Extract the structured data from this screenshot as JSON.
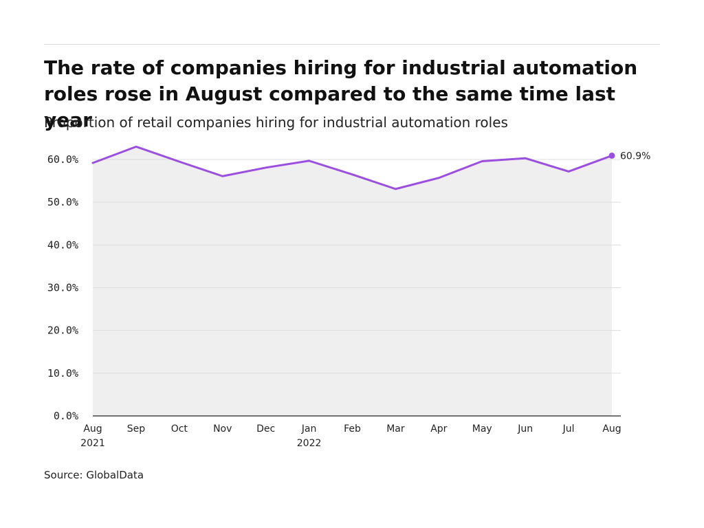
{
  "header": {
    "title": "The rate of companies hiring for industrial automation roles rose in August compared to the same time last year",
    "subtitle": "Proportion of retail companies hiring for industrial automation roles"
  },
  "footer": {
    "source": "Source: GlobalData"
  },
  "colors": {
    "line": "#9b4fe0",
    "area": "#efefef",
    "grid": "#dedede",
    "axis": "#222222"
  },
  "chart_data": {
    "type": "area",
    "categories": [
      "Aug\n2021",
      "Sep",
      "Oct",
      "Nov",
      "Dec",
      "Jan\n2022",
      "Feb",
      "Mar",
      "Apr",
      "May",
      "Jun",
      "Jul",
      "Aug"
    ],
    "series": [
      {
        "values": [
          59.2,
          63.0,
          59.5,
          56.1,
          58.1,
          59.7,
          56.5,
          53.1,
          55.7,
          59.6,
          60.3,
          57.2,
          60.9
        ]
      }
    ],
    "end_label": "60.9%",
    "y_tick_labels": [
      "0.0%",
      "10.0%",
      "20.0%",
      "30.0%",
      "40.0%",
      "50.0%",
      "60.0%"
    ],
    "ylim": [
      0,
      60
    ],
    "grid": true,
    "legend": "none"
  }
}
